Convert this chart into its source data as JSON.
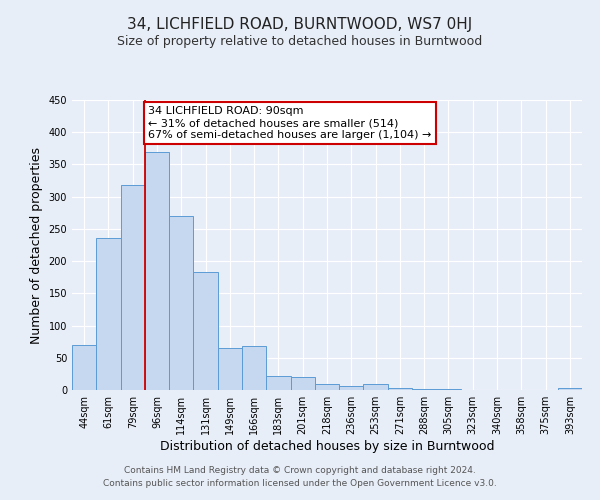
{
  "title": "34, LICHFIELD ROAD, BURNTWOOD, WS7 0HJ",
  "subtitle": "Size of property relative to detached houses in Burntwood",
  "xlabel": "Distribution of detached houses by size in Burntwood",
  "ylabel": "Number of detached properties",
  "bar_labels": [
    "44sqm",
    "61sqm",
    "79sqm",
    "96sqm",
    "114sqm",
    "131sqm",
    "149sqm",
    "166sqm",
    "183sqm",
    "201sqm",
    "218sqm",
    "236sqm",
    "253sqm",
    "271sqm",
    "288sqm",
    "305sqm",
    "323sqm",
    "340sqm",
    "358sqm",
    "375sqm",
    "393sqm"
  ],
  "bar_values": [
    70,
    236,
    318,
    370,
    270,
    183,
    65,
    68,
    22,
    20,
    10,
    6,
    10,
    3,
    1,
    1,
    0,
    0,
    0,
    0,
    3
  ],
  "bar_color": "#c5d8f0",
  "bar_edge_color": "#5b9bd5",
  "vline_x_index": 3,
  "vline_color": "#cc0000",
  "annotation_box_text": "34 LICHFIELD ROAD: 90sqm\n← 31% of detached houses are smaller (514)\n67% of semi-detached houses are larger (1,104) →",
  "annotation_box_color": "#cc0000",
  "annotation_box_bg": "#ffffff",
  "ylim": [
    0,
    450
  ],
  "yticks": [
    0,
    50,
    100,
    150,
    200,
    250,
    300,
    350,
    400,
    450
  ],
  "footer_line1": "Contains HM Land Registry data © Crown copyright and database right 2024.",
  "footer_line2": "Contains public sector information licensed under the Open Government Licence v3.0.",
  "background_color": "#e8eef8",
  "grid_color": "#ffffff",
  "title_fontsize": 11,
  "subtitle_fontsize": 9,
  "axis_label_fontsize": 9,
  "tick_fontsize": 7,
  "footer_fontsize": 6.5,
  "annotation_fontsize": 8
}
